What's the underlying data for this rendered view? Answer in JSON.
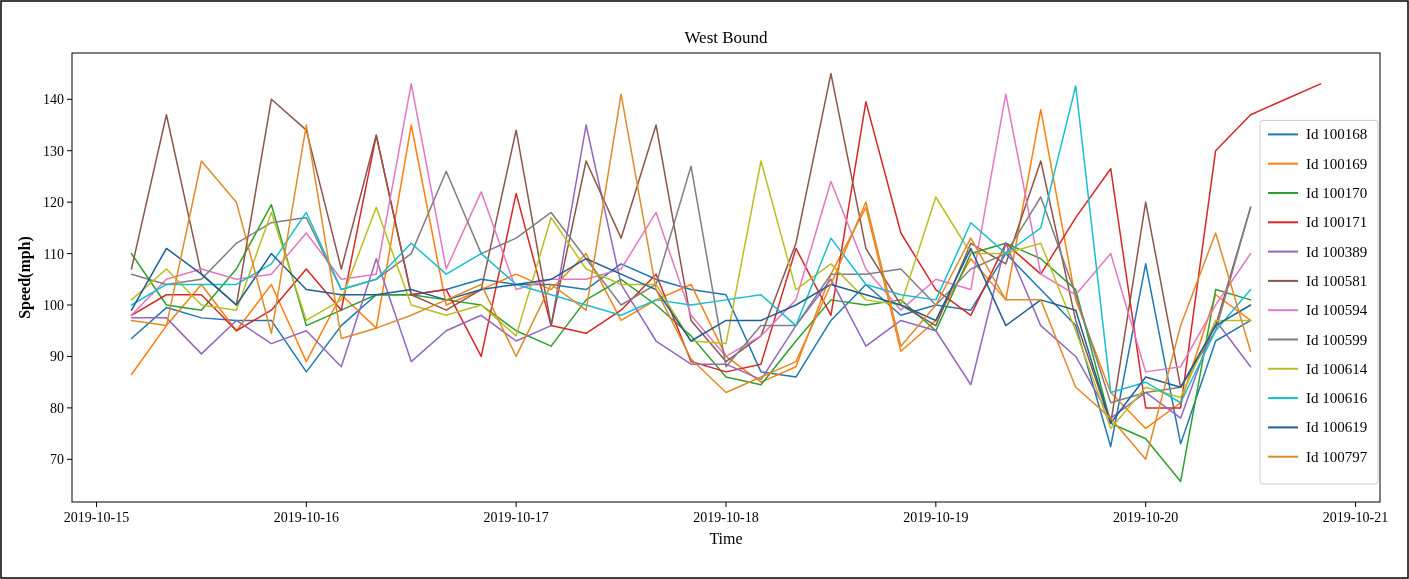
{
  "chart_data": {
    "type": "line",
    "title": "West Bound",
    "xlabel": "Time",
    "ylabel": "Speed(mph)",
    "x": [
      "2019-10-15T04:00",
      "2019-10-15T08:00",
      "2019-10-15T12:00",
      "2019-10-15T16:00",
      "2019-10-15T20:00",
      "2019-10-16T00:00",
      "2019-10-16T04:00",
      "2019-10-16T08:00",
      "2019-10-16T12:00",
      "2019-10-16T16:00",
      "2019-10-16T20:00",
      "2019-10-17T00:00",
      "2019-10-17T04:00",
      "2019-10-17T08:00",
      "2019-10-17T12:00",
      "2019-10-17T16:00",
      "2019-10-17T20:00",
      "2019-10-18T00:00",
      "2019-10-18T04:00",
      "2019-10-18T08:00",
      "2019-10-18T12:00",
      "2019-10-18T16:00",
      "2019-10-18T20:00",
      "2019-10-19T00:00",
      "2019-10-19T04:00",
      "2019-10-19T08:00",
      "2019-10-19T12:00",
      "2019-10-19T16:00",
      "2019-10-19T20:00",
      "2019-10-20T00:00",
      "2019-10-20T04:00",
      "2019-10-20T08:00",
      "2019-10-20T12:00",
      "2019-10-20T16:00",
      "2019-10-20T20:00"
    ],
    "xlim": [
      "2019-10-14T21:12",
      "2019-10-21T02:48"
    ],
    "xticks": [
      "2019-10-15",
      "2019-10-16",
      "2019-10-17",
      "2019-10-18",
      "2019-10-19",
      "2019-10-20",
      "2019-10-21"
    ],
    "ylim": [
      61.7,
      149
    ],
    "yticks": [
      70,
      80,
      90,
      100,
      110,
      120,
      130,
      140
    ],
    "grid": false,
    "legend": "right",
    "series": [
      {
        "name": "Id 100168",
        "color": "#1f77b4",
        "values": [
          93.5,
          99.5,
          97.5,
          97,
          97,
          87,
          96,
          102,
          102,
          103,
          105,
          104,
          104,
          103,
          108,
          105,
          103,
          102,
          87,
          86,
          97,
          104,
          98,
          100,
          99,
          110,
          103,
          96,
          72.5,
          108,
          73,
          93,
          97,
          null,
          null
        ]
      },
      {
        "name": "Id 100169",
        "color": "#ff7f0e",
        "values": [
          86.5,
          96,
          104,
          95,
          104,
          89,
          102,
          95.5,
          135,
          100,
          103,
          106,
          103,
          110,
          97,
          101,
          104,
          90,
          85,
          88,
          106,
          119,
          91,
          97,
          109,
          101,
          138,
          101,
          83,
          76,
          81,
          102,
          97,
          null,
          null
        ]
      },
      {
        "name": "Id 100170",
        "color": "#2ca02c",
        "values": [
          110,
          100,
          99,
          107,
          119.5,
          96,
          99,
          102,
          102,
          101,
          100,
          95,
          92,
          101,
          105,
          100,
          94,
          86,
          84.5,
          93,
          101,
          100,
          101,
          95,
          110,
          112,
          109,
          103,
          77,
          74,
          65.7,
          103,
          101,
          null,
          null
        ]
      },
      {
        "name": "Id 100171",
        "color": "#d62728",
        "values": [
          98,
          102,
          102,
          95,
          99,
          107,
          99,
          133,
          102,
          103,
          90,
          121.7,
          96,
          94.5,
          99,
          106,
          89,
          87,
          88.5,
          111,
          98,
          139.5,
          114,
          103,
          98,
          112,
          106,
          117,
          126.5,
          80,
          80,
          130,
          137,
          140,
          143
        ]
      },
      {
        "name": "Id 100389",
        "color": "#9467bd",
        "values": [
          97.5,
          97.5,
          90.5,
          97,
          92.5,
          95,
          88,
          109,
          89,
          95,
          98,
          93,
          96,
          135,
          104,
          93,
          88.5,
          88.5,
          85.5,
          96,
          105,
          92,
          97,
          95,
          84.5,
          112,
          96,
          90,
          78,
          83,
          78,
          97,
          88,
          null,
          null
        ]
      },
      {
        "name": "Id 100581",
        "color": "#8c564b",
        "values": [
          107,
          137,
          106,
          100,
          140,
          134,
          107,
          133,
          102,
          99,
          103,
          134,
          96,
          128,
          113,
          135,
          97,
          89,
          94,
          112,
          145,
          111,
          100,
          96,
          112,
          108,
          128,
          97,
          77,
          120,
          84,
          96,
          119,
          null,
          null
        ]
      },
      {
        "name": "Id 100594",
        "color": "#e377c2",
        "values": [
          98,
          105,
          107,
          105,
          106,
          114,
          105,
          106,
          143,
          107,
          122,
          103,
          105,
          105,
          107,
          118,
          98,
          90,
          94,
          101,
          124,
          107,
          99,
          105,
          103,
          141,
          106,
          102,
          110,
          87,
          88,
          100,
          110,
          null,
          null
        ]
      },
      {
        "name": "Id 100599",
        "color": "#7f7f7f",
        "values": [
          106,
          104,
          105,
          112,
          116,
          117,
          103,
          105,
          110,
          126,
          110,
          113,
          118,
          109,
          100,
          104,
          127,
          88,
          96,
          96,
          106,
          106,
          107,
          100,
          107,
          110,
          121,
          102,
          81,
          83,
          84,
          95,
          119,
          null,
          null
        ]
      },
      {
        "name": "Id 100614",
        "color": "#bcbd22",
        "values": [
          101,
          107,
          100,
          99,
          118,
          97,
          101,
          119,
          100,
          98,
          100,
          94,
          117,
          107,
          104,
          104,
          93,
          92.5,
          128,
          103,
          108,
          101,
          100,
          121,
          110,
          110,
          112,
          95,
          76,
          84,
          82,
          97,
          97,
          null,
          null
        ]
      },
      {
        "name": "Id 100616",
        "color": "#17becf",
        "values": [
          100,
          104,
          104,
          104,
          108,
          118,
          103,
          105,
          112,
          106,
          110,
          104,
          102,
          100,
          98,
          101,
          100,
          101,
          102,
          96,
          113,
          104,
          102,
          101,
          116,
          110,
          115,
          142.6,
          83,
          85,
          81,
          95,
          103,
          null,
          null
        ]
      },
      {
        "name": "Id 100619",
        "color": "#1f5f94",
        "values": [
          99,
          111,
          106,
          100,
          110,
          103,
          102,
          102,
          103,
          101,
          103,
          104,
          105,
          109,
          106,
          103,
          93,
          97,
          97,
          100,
          104,
          102,
          100,
          97,
          111,
          96,
          101,
          99,
          77,
          86,
          84,
          96,
          100,
          null,
          null
        ]
      },
      {
        "name": "Id 100797",
        "color": "#e08a2a",
        "values": [
          97,
          96,
          128,
          120,
          94.5,
          135,
          93.5,
          95.5,
          98,
          101,
          104,
          90,
          104,
          99,
          141,
          103,
          89.5,
          83,
          86,
          89,
          104,
          120,
          92,
          100,
          113,
          101,
          101,
          84,
          78,
          70,
          96,
          114,
          91,
          null,
          null
        ]
      }
    ]
  }
}
